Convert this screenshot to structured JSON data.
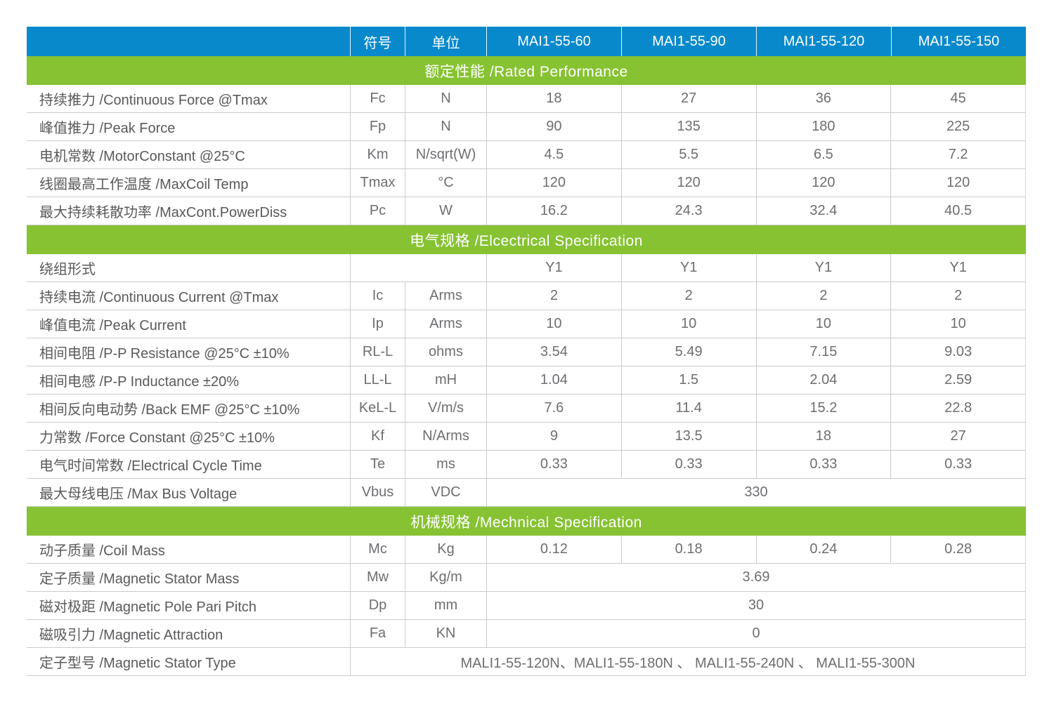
{
  "colors": {
    "header_blue": "#0889cc",
    "section_green": "#86c232",
    "grid_line": "#c9cacb",
    "label_text": "#58595b",
    "value_text": "#6d6e71",
    "header_text": "#ffffff"
  },
  "table": {
    "header": {
      "symbol_label": "符号",
      "unit_label": "单位",
      "models": [
        "MAI1-55-60",
        "MAI1-55-90",
        "MAI1-55-120",
        "MAI1-55-150"
      ]
    },
    "sections": [
      {
        "title": "额定性能 /Rated Performance",
        "rows": [
          {
            "label": "持续推力 /Continuous Force @Tmax",
            "symbol": "Fc",
            "unit": "N",
            "values": [
              "18",
              "27",
              "36",
              "45"
            ]
          },
          {
            "label": "峰值推力 /Peak Force",
            "symbol": "Fp",
            "unit": "N",
            "values": [
              "90",
              "135",
              "180",
              "225"
            ]
          },
          {
            "label": "电机常数 /MotorConstant @25°C",
            "symbol": "Km",
            "unit": "N/sqrt(W)",
            "values": [
              "4.5",
              "5.5",
              "6.5",
              "7.2"
            ]
          },
          {
            "label": "线圈最高工作温度 /MaxCoil Temp",
            "symbol": "Tmax",
            "unit": "°C",
            "values": [
              "120",
              "120",
              "120",
              "120"
            ]
          },
          {
            "label": "最大持续耗散功率 /MaxCont.PowerDiss",
            "symbol": "Pc",
            "unit": "W",
            "values": [
              "16.2",
              "24.3",
              "32.4",
              "40.5"
            ]
          }
        ]
      },
      {
        "title": "电气规格 /Elcectrical Specification",
        "rows": [
          {
            "label": "绕组形式",
            "merge_symbol_unit": true,
            "values": [
              "Y1",
              "Y1",
              "Y1",
              "Y1"
            ]
          },
          {
            "label": "持续电流 /Continuous Current @Tmax",
            "symbol": "Ic",
            "unit": "Arms",
            "values": [
              "2",
              "2",
              "2",
              "2"
            ]
          },
          {
            "label": "峰值电流 /Peak Current",
            "symbol": "Ip",
            "unit": "Arms",
            "values": [
              "10",
              "10",
              "10",
              "10"
            ]
          },
          {
            "label": "相间电阻 /P-P Resistance @25°C ±10%",
            "symbol": "RL-L",
            "unit": "ohms",
            "values": [
              "3.54",
              "5.49",
              "7.15",
              "9.03"
            ]
          },
          {
            "label": "相间电感 /P-P Inductance ±20%",
            "symbol": "LL-L",
            "unit": "mH",
            "values": [
              "1.04",
              "1.5",
              "2.04",
              "2.59"
            ]
          },
          {
            "label": "相间反向电动势 /Back EMF @25°C ±10%",
            "symbol": "KeL-L",
            "unit": "V/m/s",
            "values": [
              "7.6",
              "11.4",
              "15.2",
              "22.8"
            ]
          },
          {
            "label": "力常数 /Force Constant @25°C ±10%",
            "symbol": "Kf",
            "unit": "N/Arms",
            "values": [
              "9",
              "13.5",
              "18",
              "27"
            ]
          },
          {
            "label": "电气时间常数 /Electrical Cycle Time",
            "symbol": "Te",
            "unit": "ms",
            "values": [
              "0.33",
              "0.33",
              "0.33",
              "0.33"
            ]
          },
          {
            "label": "最大母线电压 /Max Bus Voltage",
            "symbol": "Vbus",
            "unit": "VDC",
            "value_span": "330"
          }
        ]
      },
      {
        "title": "机械规格 /Mechnical Specification",
        "rows": [
          {
            "label": "动子质量 /Coil Mass",
            "symbol": "Mc",
            "unit": "Kg",
            "values": [
              "0.12",
              "0.18",
              "0.24",
              "0.28"
            ]
          },
          {
            "label": "定子质量 /Magnetic Stator Mass",
            "symbol": "Mw",
            "unit": "Kg/m",
            "value_span": "3.69"
          },
          {
            "label": "磁对极距 /Magnetic Pole Pari Pitch",
            "symbol": "Dp",
            "unit": "mm",
            "value_span": "30"
          },
          {
            "label": "磁吸引力 /Magnetic Attraction",
            "symbol": "Fa",
            "unit": "KN",
            "value_span": "0"
          },
          {
            "label": "定子型号 /Magnetic Stator Type",
            "full_span": "MALI1-55-120N、MALI1-55-180N 、 MALI1-55-240N 、 MALI1-55-300N"
          }
        ]
      }
    ]
  }
}
